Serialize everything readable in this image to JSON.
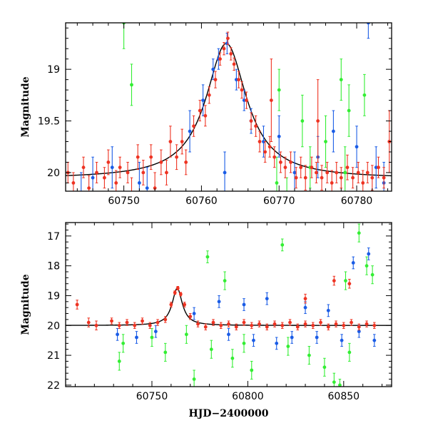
{
  "colors": {
    "green": "#33ee33",
    "blue": "#1a5ce6",
    "red": "#ee3322",
    "model": "#000000"
  },
  "chart_data": [
    {
      "type": "scatter",
      "panel": "top",
      "title": "",
      "xlabel": "",
      "ylabel": "Magnitude",
      "xlim": [
        60742.5,
        60784.5
      ],
      "ylim": [
        20.18,
        18.55
      ],
      "y_inverted": true,
      "xticks": [
        60750,
        60760,
        60770,
        60780
      ],
      "yticks": [
        19,
        19.5,
        20
      ],
      "model_curve": {
        "peak_x": 60763.2,
        "peak_y": 18.75,
        "baseline_y": 20.06,
        "description_free": true
      },
      "series": [
        {
          "color": "green",
          "points": [
            [
              60750.0,
              18.55,
              0.25
            ],
            [
              60751.0,
              19.15,
              0.2
            ],
            [
              60769.7,
              20.1,
              0.25
            ],
            [
              60770.0,
              19.2,
              0.2
            ],
            [
              60771.0,
              20.25,
              0.2
            ],
            [
              60774.0,
              19.95,
              0.2
            ],
            [
              60776.0,
              19.7,
              0.25
            ],
            [
              60778.0,
              19.1,
              0.2
            ],
            [
              60779.0,
              19.4,
              0.25
            ],
            [
              60781.0,
              19.25,
              0.2
            ],
            [
              60778.5,
              20.0,
              0.25
            ],
            [
              60773.0,
              19.5,
              0.25
            ]
          ]
        },
        {
          "color": "blue",
          "points": [
            [
              60744.5,
              20.2,
              0.2
            ],
            [
              60746.0,
              20.05,
              0.2
            ],
            [
              60748.5,
              19.95,
              0.2
            ],
            [
              60752.0,
              20.1,
              0.2
            ],
            [
              60753.0,
              20.15,
              0.2
            ],
            [
              60758.5,
              19.6,
              0.2
            ],
            [
              60760.2,
              19.3,
              0.15
            ],
            [
              60761.5,
              19.0,
              0.1
            ],
            [
              60762.2,
              18.9,
              0.1
            ],
            [
              60763.3,
              18.75,
              0.1
            ],
            [
              60764.5,
              19.1,
              0.1
            ],
            [
              60765.5,
              19.3,
              0.1
            ],
            [
              60766.4,
              19.5,
              0.12
            ],
            [
              60763.0,
              20.0,
              0.2
            ],
            [
              60768.0,
              19.7,
              0.15
            ],
            [
              60770.0,
              19.65,
              0.2
            ],
            [
              60772.0,
              20.0,
              0.2
            ],
            [
              60775.0,
              19.85,
              0.2
            ],
            [
              60777.0,
              19.6,
              0.2
            ],
            [
              60780.0,
              19.75,
              0.2
            ],
            [
              60781.5,
              18.55,
              0.15
            ],
            [
              60782.5,
              19.95,
              0.2
            ],
            [
              60783.5,
              20.1,
              0.2
            ]
          ]
        },
        {
          "color": "red",
          "points": [
            [
              60742.8,
              20.0,
              0.1
            ],
            [
              60743.5,
              20.1,
              0.1
            ],
            [
              60744.8,
              19.95,
              0.1
            ],
            [
              60745.5,
              20.15,
              0.12
            ],
            [
              60746.5,
              20.0,
              0.1
            ],
            [
              60747.5,
              20.05,
              0.1
            ],
            [
              60748.0,
              19.9,
              0.12
            ],
            [
              60749.0,
              20.1,
              0.12
            ],
            [
              60749.5,
              19.95,
              0.1
            ],
            [
              60750.5,
              20.0,
              0.1
            ],
            [
              60751.0,
              20.2,
              0.15
            ],
            [
              60751.8,
              19.85,
              0.12
            ],
            [
              60752.5,
              20.0,
              0.12
            ],
            [
              60753.5,
              19.85,
              0.12
            ],
            [
              60754.0,
              20.15,
              0.15
            ],
            [
              60754.8,
              19.9,
              0.12
            ],
            [
              60755.5,
              20.0,
              0.12
            ],
            [
              60756.0,
              19.7,
              0.15
            ],
            [
              60756.8,
              19.85,
              0.12
            ],
            [
              60757.5,
              19.7,
              0.12
            ],
            [
              60758.0,
              19.9,
              0.12
            ],
            [
              60759.0,
              19.55,
              0.1
            ],
            [
              60759.8,
              19.4,
              0.1
            ],
            [
              60760.5,
              19.45,
              0.1
            ],
            [
              60761.0,
              19.25,
              0.08
            ],
            [
              60761.8,
              19.1,
              0.08
            ],
            [
              60762.4,
              18.9,
              0.06
            ],
            [
              60762.9,
              18.8,
              0.06
            ],
            [
              60763.4,
              18.7,
              0.06
            ],
            [
              60763.8,
              18.85,
              0.06
            ],
            [
              60764.2,
              18.95,
              0.06
            ],
            [
              60764.8,
              19.1,
              0.08
            ],
            [
              60765.2,
              19.2,
              0.08
            ],
            [
              60765.8,
              19.3,
              0.08
            ],
            [
              60766.4,
              19.5,
              0.08
            ],
            [
              60767.0,
              19.55,
              0.1
            ],
            [
              60767.5,
              19.7,
              0.1
            ],
            [
              60768.2,
              19.8,
              0.1
            ],
            [
              60768.8,
              19.75,
              0.1
            ],
            [
              60769.4,
              19.85,
              0.1
            ],
            [
              60770.2,
              19.9,
              0.1
            ],
            [
              60770.8,
              19.95,
              0.1
            ],
            [
              60771.5,
              19.9,
              0.1
            ],
            [
              60772.2,
              20.05,
              0.1
            ],
            [
              60772.8,
              19.95,
              0.1
            ],
            [
              60773.4,
              20.05,
              0.12
            ],
            [
              60774.2,
              19.95,
              0.1
            ],
            [
              60774.8,
              20.0,
              0.1
            ],
            [
              60775.5,
              20.05,
              0.12
            ],
            [
              60776.2,
              20.0,
              0.1
            ],
            [
              60776.8,
              20.1,
              0.12
            ],
            [
              60777.4,
              20.0,
              0.1
            ],
            [
              60778.0,
              20.05,
              0.1
            ],
            [
              60778.8,
              19.95,
              0.12
            ],
            [
              60779.5,
              20.05,
              0.1
            ],
            [
              60780.2,
              20.0,
              0.1
            ],
            [
              60780.8,
              20.1,
              0.12
            ],
            [
              60781.4,
              20.0,
              0.1
            ],
            [
              60782.0,
              20.05,
              0.12
            ],
            [
              60782.8,
              19.95,
              0.1
            ],
            [
              60783.5,
              20.05,
              0.1
            ],
            [
              60784.2,
              19.7,
              0.3
            ],
            [
              60775.0,
              19.5,
              0.4
            ],
            [
              60769.0,
              19.3,
              0.4
            ]
          ]
        }
      ]
    },
    {
      "type": "scatter",
      "panel": "bottom",
      "title": "",
      "xlabel": "HJD−2400000",
      "ylabel": "Magnitude",
      "xlim": [
        60705,
        60875
      ],
      "ylim": [
        22.05,
        16.55
      ],
      "y_inverted": true,
      "xticks": [
        60750,
        60800,
        60850
      ],
      "yticks": [
        17,
        18,
        19,
        20,
        21,
        22
      ],
      "model_curve": {
        "peak_x": 60763.2,
        "peak_y": 18.75,
        "baseline_y": 20.0
      },
      "series": [
        {
          "color": "green",
          "points": [
            [
              60733,
              21.2,
              0.3
            ],
            [
              60735,
              20.6,
              0.3
            ],
            [
              60750,
              20.4,
              0.3
            ],
            [
              60757,
              20.9,
              0.3
            ],
            [
              60768,
              20.3,
              0.3
            ],
            [
              60772,
              21.8,
              0.3
            ],
            [
              60779,
              17.7,
              0.2
            ],
            [
              60781,
              20.8,
              0.3
            ],
            [
              60788,
              18.5,
              0.3
            ],
            [
              60792,
              21.1,
              0.3
            ],
            [
              60798,
              20.6,
              0.3
            ],
            [
              60802,
              21.5,
              0.3
            ],
            [
              60818,
              17.3,
              0.2
            ],
            [
              60821,
              20.7,
              0.3
            ],
            [
              60832,
              21.0,
              0.3
            ],
            [
              60840,
              21.4,
              0.3
            ],
            [
              60845,
              21.9,
              0.3
            ],
            [
              60851,
              18.5,
              0.3
            ],
            [
              60853,
              20.9,
              0.3
            ],
            [
              60858,
              16.9,
              0.3
            ],
            [
              60862,
              18.0,
              0.3
            ],
            [
              60865,
              18.3,
              0.3
            ],
            [
              60848,
              22.0,
              0.2
            ]
          ]
        },
        {
          "color": "blue",
          "points": [
            [
              60732,
              20.3,
              0.2
            ],
            [
              60742,
              20.4,
              0.2
            ],
            [
              60752,
              20.2,
              0.2
            ],
            [
              60772,
              19.6,
              0.2
            ],
            [
              60785,
              19.2,
              0.2
            ],
            [
              60790,
              20.3,
              0.2
            ],
            [
              60798,
              19.3,
              0.2
            ],
            [
              60803,
              20.5,
              0.2
            ],
            [
              60810,
              19.1,
              0.2
            ],
            [
              60815,
              20.6,
              0.2
            ],
            [
              60823,
              20.4,
              0.2
            ],
            [
              60830,
              19.4,
              0.2
            ],
            [
              60836,
              20.4,
              0.2
            ],
            [
              60842,
              19.5,
              0.2
            ],
            [
              60849,
              20.5,
              0.2
            ],
            [
              60855,
              17.9,
              0.2
            ],
            [
              60858,
              20.2,
              0.2
            ],
            [
              60863,
              17.6,
              0.2
            ],
            [
              60866,
              20.5,
              0.2
            ]
          ]
        },
        {
          "color": "red",
          "points": [
            [
              60711,
              19.3,
              0.15
            ],
            [
              60717,
              19.9,
              0.15
            ],
            [
              60721,
              20.0,
              0.15
            ],
            [
              60729,
              19.85,
              0.1
            ],
            [
              60733,
              20.0,
              0.1
            ],
            [
              60737,
              19.9,
              0.1
            ],
            [
              60741,
              20.0,
              0.1
            ],
            [
              60745,
              19.85,
              0.1
            ],
            [
              60749,
              20.0,
              0.1
            ],
            [
              60753,
              19.9,
              0.1
            ],
            [
              60757,
              19.8,
              0.1
            ],
            [
              60760,
              19.3,
              0.08
            ],
            [
              60762,
              18.9,
              0.06
            ],
            [
              60763.5,
              18.75,
              0.06
            ],
            [
              60765,
              18.95,
              0.06
            ],
            [
              60767,
              19.3,
              0.08
            ],
            [
              60770,
              19.7,
              0.1
            ],
            [
              60774,
              19.95,
              0.1
            ],
            [
              60778,
              20.05,
              0.1
            ],
            [
              60782,
              19.9,
              0.1
            ],
            [
              60786,
              20.0,
              0.1
            ],
            [
              60790,
              19.95,
              0.1
            ],
            [
              60794,
              20.05,
              0.1
            ],
            [
              60798,
              19.9,
              0.1
            ],
            [
              60802,
              20.0,
              0.1
            ],
            [
              60806,
              19.95,
              0.1
            ],
            [
              60810,
              20.05,
              0.1
            ],
            [
              60814,
              19.95,
              0.1
            ],
            [
              60818,
              20.0,
              0.1
            ],
            [
              60822,
              19.9,
              0.1
            ],
            [
              60826,
              20.05,
              0.1
            ],
            [
              60830,
              19.95,
              0.1
            ],
            [
              60834,
              20.0,
              0.1
            ],
            [
              60838,
              19.9,
              0.1
            ],
            [
              60842,
              20.05,
              0.1
            ],
            [
              60846,
              19.95,
              0.1
            ],
            [
              60850,
              20.0,
              0.1
            ],
            [
              60854,
              19.9,
              0.1
            ],
            [
              60858,
              20.05,
              0.1
            ],
            [
              60862,
              19.95,
              0.1
            ],
            [
              60866,
              20.0,
              0.1
            ],
            [
              60845,
              18.5,
              0.15
            ],
            [
              60853,
              18.6,
              0.15
            ],
            [
              60830,
              19.1,
              0.15
            ]
          ]
        }
      ]
    }
  ]
}
